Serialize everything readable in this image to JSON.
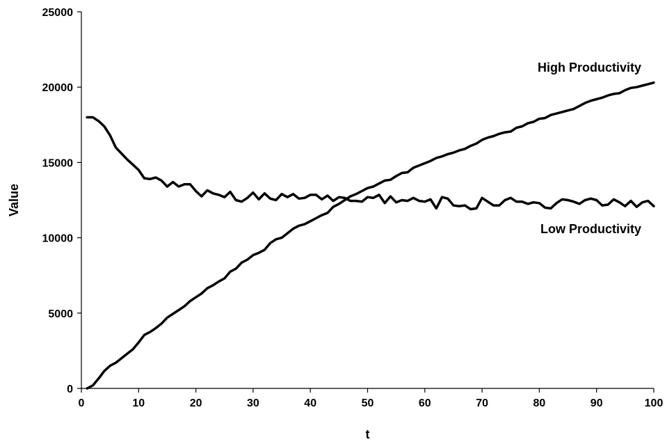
{
  "chart_data": {
    "type": "line",
    "title": "",
    "xlabel": "t",
    "ylabel": "Value",
    "xlim": [
      0,
      100
    ],
    "ylim": [
      0,
      25000
    ],
    "xticks": [
      0,
      10,
      20,
      30,
      40,
      50,
      60,
      70,
      80,
      90,
      100
    ],
    "yticks": [
      0,
      5000,
      10000,
      15000,
      20000,
      25000
    ],
    "grid": false,
    "legend": "none",
    "series": [
      {
        "name": "High Productivity",
        "color": "#000000",
        "x": [
          1,
          2,
          3,
          4,
          5,
          6,
          7,
          8,
          9,
          10,
          11,
          12,
          13,
          14,
          15,
          16,
          17,
          18,
          19,
          20,
          21,
          22,
          23,
          24,
          25,
          26,
          27,
          28,
          29,
          30,
          31,
          32,
          33,
          34,
          35,
          36,
          37,
          38,
          39,
          40,
          41,
          42,
          43,
          44,
          45,
          46,
          47,
          48,
          49,
          50,
          51,
          52,
          53,
          54,
          55,
          56,
          57,
          58,
          59,
          60,
          61,
          62,
          63,
          64,
          65,
          66,
          67,
          68,
          69,
          70,
          71,
          72,
          73,
          74,
          75,
          76,
          77,
          78,
          79,
          80,
          81,
          82,
          83,
          84,
          85,
          86,
          87,
          88,
          89,
          90,
          91,
          92,
          93,
          94,
          95,
          96,
          97,
          98,
          99,
          100
        ],
        "y": [
          0,
          200,
          650,
          1150,
          1500,
          1700,
          2000,
          2300,
          2600,
          3050,
          3550,
          3750,
          4000,
          4300,
          4700,
          4950,
          5200,
          5450,
          5800,
          6050,
          6300,
          6650,
          6850,
          7100,
          7300,
          7750,
          7950,
          8350,
          8550,
          8850,
          9000,
          9200,
          9650,
          9900,
          10000,
          10300,
          10600,
          10800,
          10900,
          11100,
          11300,
          11500,
          11650,
          12050,
          12250,
          12500,
          12750,
          12900,
          13100,
          13300,
          13400,
          13600,
          13800,
          13850,
          14100,
          14300,
          14350,
          14650,
          14800,
          14950,
          15100,
          15300,
          15400,
          15550,
          15650,
          15800,
          15900,
          16100,
          16250,
          16500,
          16650,
          16750,
          16900,
          17000,
          17050,
          17300,
          17400,
          17600,
          17700,
          17900,
          17950,
          18150,
          18250,
          18350,
          18450,
          18550,
          18750,
          18950,
          19100,
          19200,
          19300,
          19450,
          19550,
          19600,
          19800,
          19950,
          20000,
          20100,
          20200,
          20300
        ]
      },
      {
        "name": "Low Productivity",
        "color": "#000000",
        "x": [
          1,
          2,
          3,
          4,
          5,
          6,
          7,
          8,
          9,
          10,
          11,
          12,
          13,
          14,
          15,
          16,
          17,
          18,
          19,
          20,
          21,
          22,
          23,
          24,
          25,
          26,
          27,
          28,
          29,
          30,
          31,
          32,
          33,
          34,
          35,
          36,
          37,
          38,
          39,
          40,
          41,
          42,
          43,
          44,
          45,
          46,
          47,
          48,
          49,
          50,
          51,
          52,
          53,
          54,
          55,
          56,
          57,
          58,
          59,
          60,
          61,
          62,
          63,
          64,
          65,
          66,
          67,
          68,
          69,
          70,
          71,
          72,
          73,
          74,
          75,
          76,
          77,
          78,
          79,
          80,
          81,
          82,
          83,
          84,
          85,
          86,
          87,
          88,
          89,
          90,
          91,
          92,
          93,
          94,
          95,
          96,
          97,
          98,
          99,
          100
        ],
        "y": [
          18000,
          18000,
          17750,
          17400,
          16800,
          16000,
          15600,
          15200,
          14850,
          14500,
          13950,
          13900,
          14000,
          13800,
          13400,
          13700,
          13400,
          13550,
          13550,
          13100,
          12750,
          13150,
          12950,
          12850,
          12700,
          13050,
          12500,
          12400,
          12650,
          13000,
          12550,
          12950,
          12600,
          12500,
          12900,
          12700,
          12900,
          12600,
          12650,
          12850,
          12850,
          12550,
          12800,
          12450,
          12700,
          12650,
          12450,
          12450,
          12400,
          12700,
          12650,
          12850,
          12300,
          12750,
          12350,
          12500,
          12450,
          12650,
          12450,
          12400,
          12550,
          11950,
          12700,
          12600,
          12150,
          12100,
          12150,
          11900,
          11950,
          12650,
          12400,
          12150,
          12150,
          12500,
          12650,
          12400,
          12400,
          12250,
          12350,
          12300,
          12000,
          11950,
          12300,
          12550,
          12500,
          12400,
          12250,
          12500,
          12600,
          12500,
          12150,
          12200,
          12550,
          12350,
          12100,
          12450,
          12050,
          12350,
          12450,
          12100
        ]
      }
    ]
  }
}
